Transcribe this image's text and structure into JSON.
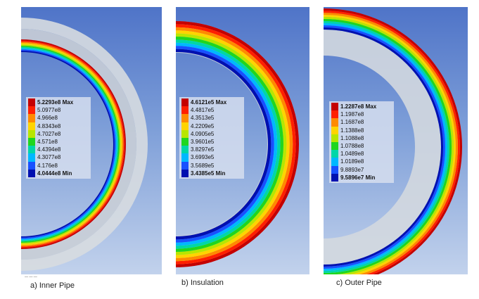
{
  "palette": [
    "#c40000",
    "#ff1f00",
    "#ff8a00",
    "#ffd400",
    "#b8e600",
    "#1fd61f",
    "#00d6a8",
    "#00b8ff",
    "#1850ff",
    "#0010b0"
  ],
  "panels": [
    {
      "caption": "a) Inner Pipe",
      "legend": {
        "max": "5.2293e8",
        "max_suffix": "Max",
        "levels": [
          "5.0977e8",
          "4.966e8",
          "4.8343e8",
          "4.7027e8",
          "4.571e8",
          "4.4394e8",
          "4.3077e8",
          "4.176e8"
        ],
        "min": "4.0444e8",
        "min_suffix": "Min"
      }
    },
    {
      "caption": "b) Insulation",
      "legend": {
        "max": "4.6121e5",
        "max_suffix": "Max",
        "levels": [
          "4.4817e5",
          "4.3513e5",
          "4.2209e5",
          "4.0905e5",
          "3.9601e5",
          "3.8297e5",
          "3.6993e5",
          "3.5689e5"
        ],
        "min": "3.4385e5",
        "min_suffix": "Min"
      }
    },
    {
      "caption": "c) Outer Pipe",
      "legend": {
        "max": "1.2287e8",
        "max_suffix": "Max",
        "levels": [
          "1.1987e8",
          "1.1687e8",
          "1.1388e8",
          "1.1088e8",
          "1.0788e8",
          "1.0489e8",
          "1.0189e8",
          "9.8893e7"
        ],
        "min": "9.5896e7",
        "min_suffix": "Min"
      }
    }
  ]
}
